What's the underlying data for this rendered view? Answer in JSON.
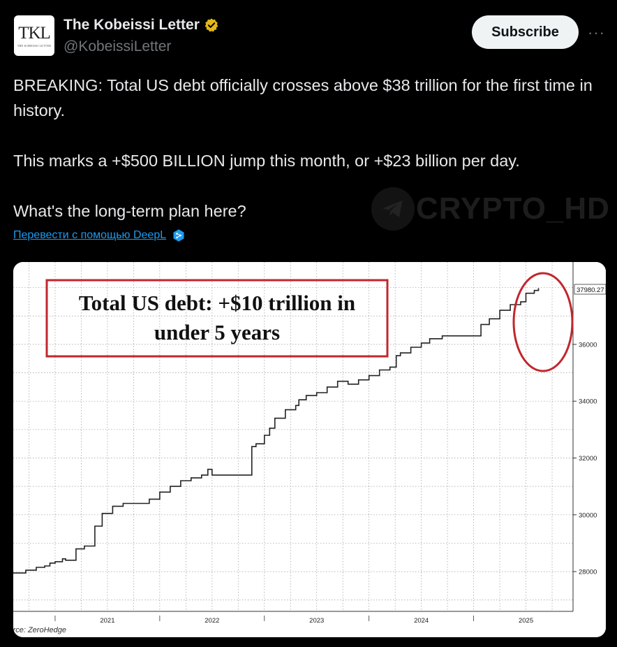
{
  "account": {
    "avatar_monogram": "TKL",
    "avatar_subtitle": "THE KOBEISSI LETTER",
    "name": "The Kobeissi Letter",
    "handle": "@KobeissiLetter",
    "verified_color": "#e2b719"
  },
  "actions": {
    "subscribe_label": "Subscribe",
    "more_label": "···"
  },
  "tweet": {
    "line1": "BREAKING: Total US debt officially crosses above $38 trillion for the first time in history.",
    "line2": "This marks a +$500 BILLION jump this month, or +$23 billion per day.",
    "line3": "What's the long-term plan here?"
  },
  "translate_label": "Перевести с помощью DeepL",
  "watermark_text": "CRYPTO_HD",
  "chart_data": {
    "type": "line",
    "title": "Total US debt: +$10 trillion in under 5 years",
    "title_line1": "Total US debt: +$10 trillion in",
    "title_line2": "under 5 years",
    "source": "Source: ZeroHedge",
    "last_value_label": "37980.27",
    "x_ticks": [
      "2021",
      "2022",
      "2023",
      "2024",
      "2025"
    ],
    "y_ticks": [
      28000,
      30000,
      32000,
      34000,
      36000
    ],
    "ylim": [
      26600,
      38900
    ],
    "xlim": [
      2020.6,
      2025.95
    ],
    "series": [
      {
        "x": [
          2020.6,
          2020.72,
          2020.82,
          2020.9,
          2020.95,
          2021.0,
          2021.07,
          2021.1,
          2021.18,
          2021.2,
          2021.28,
          2021.32,
          2021.38,
          2021.45,
          2021.55,
          2021.65,
          2021.8,
          2021.9,
          2022.0,
          2022.1,
          2022.18,
          2022.2,
          2022.3,
          2022.4,
          2022.46,
          2022.5,
          2022.6,
          2022.7,
          2022.8,
          2022.88,
          2022.92,
          2023.0,
          2023.05,
          2023.1,
          2023.2,
          2023.3,
          2023.33,
          2023.4,
          2023.5,
          2023.6,
          2023.7,
          2023.8,
          2023.9,
          2024.0,
          2024.1,
          2024.2,
          2024.26,
          2024.3,
          2024.4,
          2024.5,
          2024.58,
          2024.7,
          2024.8,
          2024.9,
          2025.0,
          2025.05,
          2025.07,
          2025.15,
          2025.25,
          2025.35,
          2025.45,
          2025.5,
          2025.58,
          2025.62
        ],
        "y": [
          27950,
          28050,
          28150,
          28200,
          28300,
          28350,
          28450,
          28400,
          28400,
          28800,
          28900,
          28900,
          29600,
          30050,
          30300,
          30400,
          30400,
          30550,
          30800,
          31000,
          31000,
          31200,
          31300,
          31400,
          31600,
          31400,
          31400,
          31400,
          31400,
          32400,
          32500,
          32800,
          33050,
          33400,
          33700,
          33850,
          34050,
          34200,
          34300,
          34500,
          34700,
          34600,
          34750,
          34900,
          35100,
          35200,
          35600,
          35700,
          35900,
          36050,
          36200,
          36300,
          36300,
          36300,
          36300,
          36300,
          36700,
          36900,
          37200,
          37400,
          37500,
          37800,
          37900,
          37980
        ]
      }
    ]
  }
}
